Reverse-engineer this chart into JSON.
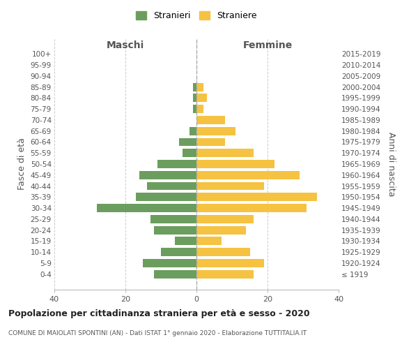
{
  "age_groups": [
    "100+",
    "95-99",
    "90-94",
    "85-89",
    "80-84",
    "75-79",
    "70-74",
    "65-69",
    "60-64",
    "55-59",
    "50-54",
    "45-49",
    "40-44",
    "35-39",
    "30-34",
    "25-29",
    "20-24",
    "15-19",
    "10-14",
    "5-9",
    "0-4"
  ],
  "birth_years": [
    "≤ 1919",
    "1920-1924",
    "1925-1929",
    "1930-1934",
    "1935-1939",
    "1940-1944",
    "1945-1949",
    "1950-1954",
    "1955-1959",
    "1960-1964",
    "1965-1969",
    "1970-1974",
    "1975-1979",
    "1980-1984",
    "1985-1989",
    "1990-1994",
    "1995-1999",
    "2000-2004",
    "2005-2009",
    "2010-2014",
    "2015-2019"
  ],
  "males": [
    0,
    0,
    0,
    1,
    1,
    1,
    0,
    2,
    5,
    4,
    11,
    16,
    14,
    17,
    28,
    13,
    12,
    6,
    10,
    15,
    12
  ],
  "females": [
    0,
    0,
    0,
    2,
    3,
    2,
    8,
    11,
    8,
    16,
    22,
    29,
    19,
    34,
    31,
    16,
    14,
    7,
    15,
    19,
    16
  ],
  "male_color": "#6b9e5e",
  "female_color": "#f5c242",
  "grid_color": "#cccccc",
  "title": "Popolazione per cittadinanza straniera per età e sesso - 2020",
  "subtitle": "COMUNE DI MAIOLATI SPONTINI (AN) - Dati ISTAT 1° gennaio 2020 - Elaborazione TUTTITALIA.IT",
  "ylabel_left": "Fasce di età",
  "ylabel_right": "Anni di nascita",
  "xlabel_left": "Maschi",
  "xlabel_right": "Femmine",
  "legend_males": "Stranieri",
  "legend_females": "Straniere",
  "xlim": 40,
  "bar_height": 0.75
}
